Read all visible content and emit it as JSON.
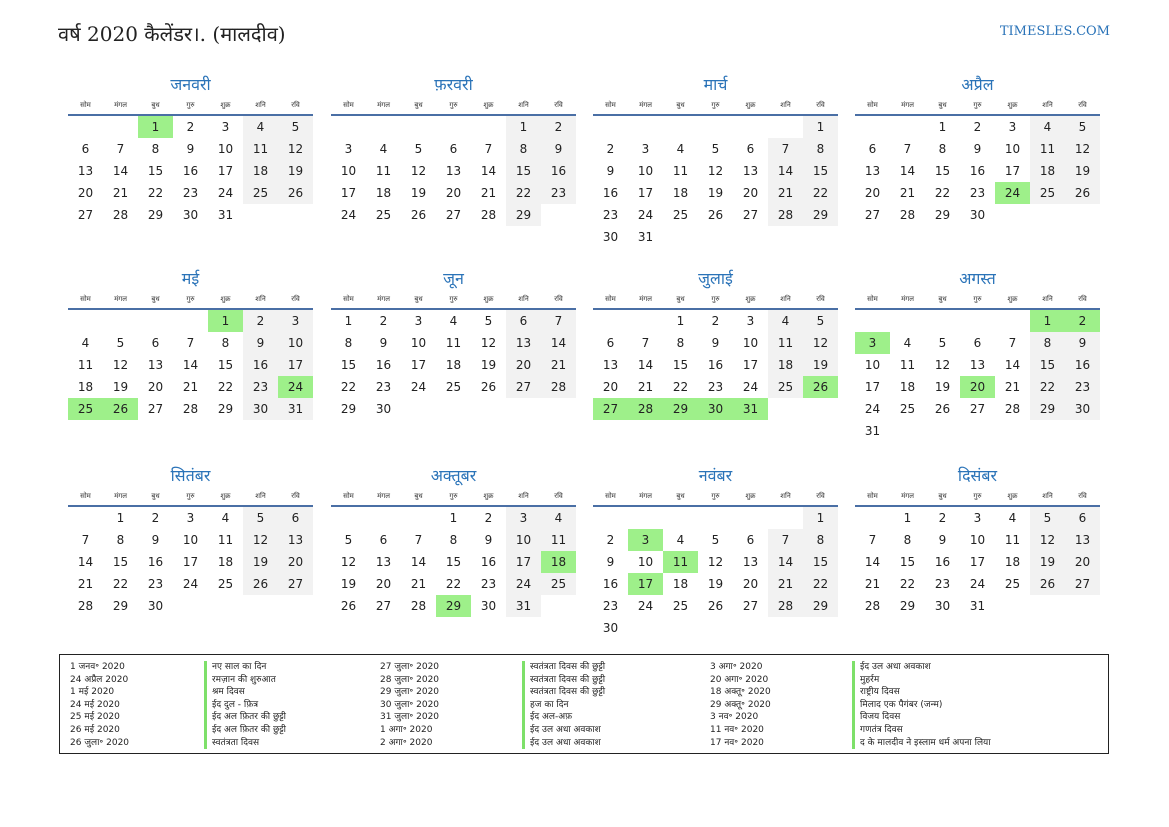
{
  "header": {
    "title": "वर्ष 2020 कैलेंडर।. (मालदीव)",
    "site": "TIMESLES.COM"
  },
  "weekdays": [
    "सोम",
    "मंगल",
    "बुध",
    "गुरु",
    "शुक्र",
    "शनि",
    "रवि"
  ],
  "months": [
    {
      "name": "जनवरी",
      "offset": 2,
      "days": 31,
      "holidays": [
        1
      ]
    },
    {
      "name": "फ़रवरी",
      "offset": 5,
      "days": 29,
      "holidays": []
    },
    {
      "name": "मार्च",
      "offset": 6,
      "days": 31,
      "holidays": []
    },
    {
      "name": "अप्रैल",
      "offset": 2,
      "days": 30,
      "holidays": [
        24
      ]
    },
    {
      "name": "मई",
      "offset": 4,
      "days": 31,
      "holidays": [
        1,
        24,
        25,
        26
      ]
    },
    {
      "name": "जून",
      "offset": 0,
      "days": 30,
      "holidays": []
    },
    {
      "name": "जुलाई",
      "offset": 2,
      "days": 31,
      "holidays": [
        26,
        27,
        28,
        29,
        30,
        31
      ]
    },
    {
      "name": "अगस्त",
      "offset": 5,
      "days": 31,
      "holidays": [
        1,
        2,
        3,
        20
      ]
    },
    {
      "name": "सितंबर",
      "offset": 1,
      "days": 30,
      "holidays": []
    },
    {
      "name": "अक्तूबर",
      "offset": 3,
      "days": 31,
      "holidays": [
        18,
        29
      ]
    },
    {
      "name": "नवंबर",
      "offset": 6,
      "days": 30,
      "holidays": [
        3,
        11,
        17
      ]
    },
    {
      "name": "दिसंबर",
      "offset": 1,
      "days": 31,
      "holidays": []
    }
  ],
  "holidays": [
    {
      "date": "1 जनव॰ 2020",
      "name": "नए साल का दिन"
    },
    {
      "date": "24 अप्रैल 2020",
      "name": "रमज़ान की शुरुआत"
    },
    {
      "date": "1 मई 2020",
      "name": "श्रम दिवस"
    },
    {
      "date": "24 मई 2020",
      "name": "ईद दुल - फ़ित्र"
    },
    {
      "date": "25 मई 2020",
      "name": "ईद अल फ़ितर की छुट्टी"
    },
    {
      "date": "26 मई 2020",
      "name": "ईद अल फ़ितर की छुट्टी"
    },
    {
      "date": "26 जुला॰ 2020",
      "name": "स्वतंत्रता दिवस"
    },
    {
      "date": "27 जुला॰ 2020",
      "name": "स्वतंत्रता दिवस की छुट्टी"
    },
    {
      "date": "28 जुला॰ 2020",
      "name": "स्वतंत्रता दिवस की छुट्टी"
    },
    {
      "date": "29 जुला॰ 2020",
      "name": "स्वतंत्रता दिवस की छुट्टी"
    },
    {
      "date": "30 जुला॰ 2020",
      "name": "हज का दिन"
    },
    {
      "date": "31 जुला॰ 2020",
      "name": "ईद अल-अफ़"
    },
    {
      "date": "1 अगा॰ 2020",
      "name": "ईद उल अधा अवकाश"
    },
    {
      "date": "2 अगा॰ 2020",
      "name": "ईद उल अधा अवकाश"
    },
    {
      "date": "3 अगा॰ 2020",
      "name": "ईद उल अधा अवकाश"
    },
    {
      "date": "20 अगा॰ 2020",
      "name": "मुहर्रम"
    },
    {
      "date": "18 अक्तू॰ 2020",
      "name": "राष्ट्रीय दिवस"
    },
    {
      "date": "29 अक्तू॰ 2020",
      "name": "मिलाद एक पैगंबर (जन्म)"
    },
    {
      "date": "3 नव॰ 2020",
      "name": "विजय दिवस"
    },
    {
      "date": "11 नव॰ 2020",
      "name": "गणतंत्र दिवस"
    },
    {
      "date": "17 नव॰ 2020",
      "name": "द के मालदीव ने इस्लाम धर्म अपना लिया"
    }
  ]
}
